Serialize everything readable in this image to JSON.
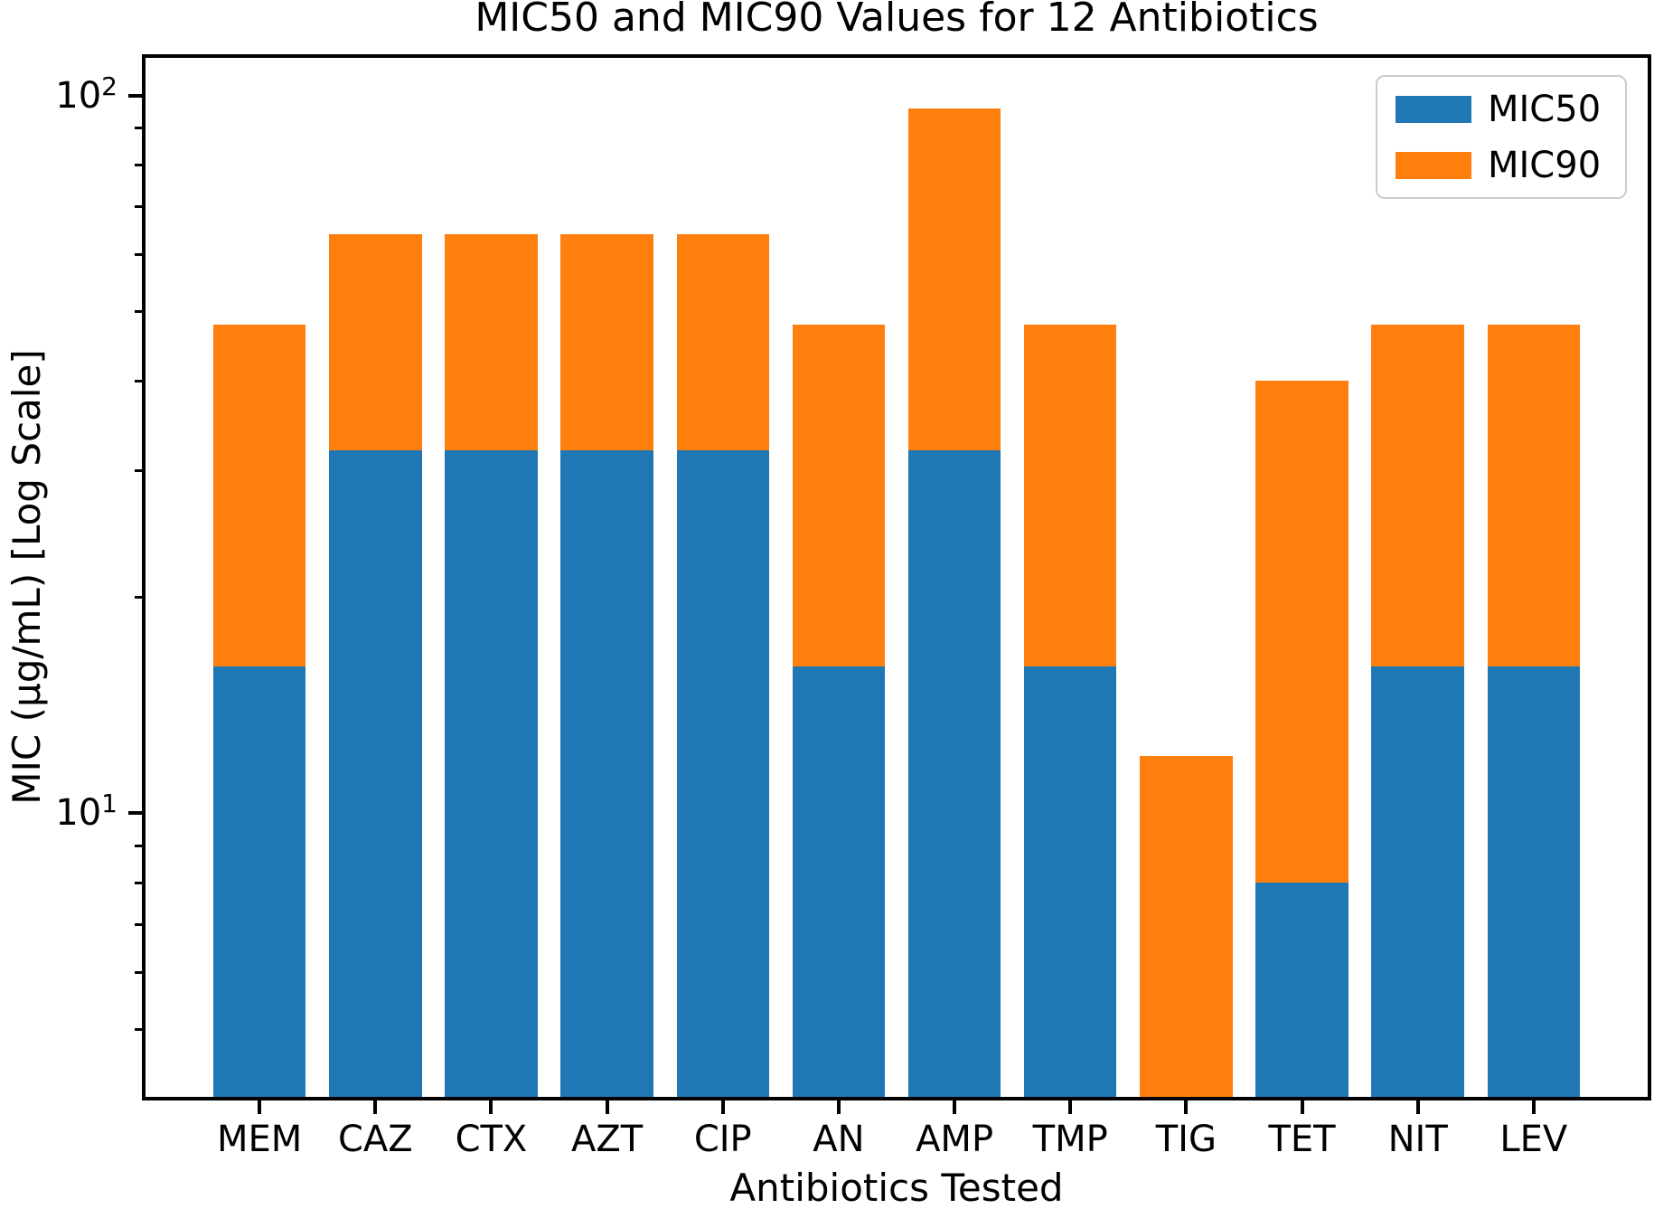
{
  "figure": {
    "background": "#ffffff",
    "axis_color": "#000000"
  },
  "chart_data": {
    "type": "bar",
    "stacked": true,
    "title": "MIC50 and MIC90 Values for 12 Antibiotics",
    "xlabel": "Antibiotics Tested",
    "ylabel": "MIC (μg/mL) [Log Scale]",
    "yscale": "log",
    "ylim": [
      4,
      113.5
    ],
    "xlim": [
      -1,
      12
    ],
    "bar_width": 0.8,
    "grid": false,
    "categories": [
      "MEM",
      "CAZ",
      "CTX",
      "AZT",
      "CIP",
      "AN",
      "AMP",
      "TMP",
      "TIG",
      "TET",
      "NIT",
      "LEV"
    ],
    "series": [
      {
        "name": "MIC50",
        "color": "#1f77b4",
        "values": [
          16,
          32,
          32,
          32,
          32,
          16,
          32,
          16,
          4,
          8,
          16,
          16
        ]
      },
      {
        "name": "MIC90",
        "color": "#ff7f0e",
        "values": [
          32,
          32,
          32,
          32,
          32,
          32,
          64,
          32,
          8,
          32,
          32,
          32
        ]
      }
    ],
    "stack_totals": [
      48,
      64,
      64,
      64,
      64,
      48,
      96,
      48,
      12,
      40,
      48,
      48
    ],
    "yticks_major": [
      {
        "value": 10,
        "base": "10",
        "exponent": "1"
      },
      {
        "value": 100,
        "base": "10",
        "exponent": "2"
      }
    ],
    "yticks_minor": [
      5,
      6,
      7,
      8,
      9,
      20,
      30,
      40,
      50,
      60,
      70,
      80,
      90
    ],
    "legend": {
      "position": "upper right",
      "entries": [
        {
          "label": "MIC50",
          "color": "#1f77b4"
        },
        {
          "label": "MIC90",
          "color": "#ff7f0e"
        }
      ]
    }
  }
}
